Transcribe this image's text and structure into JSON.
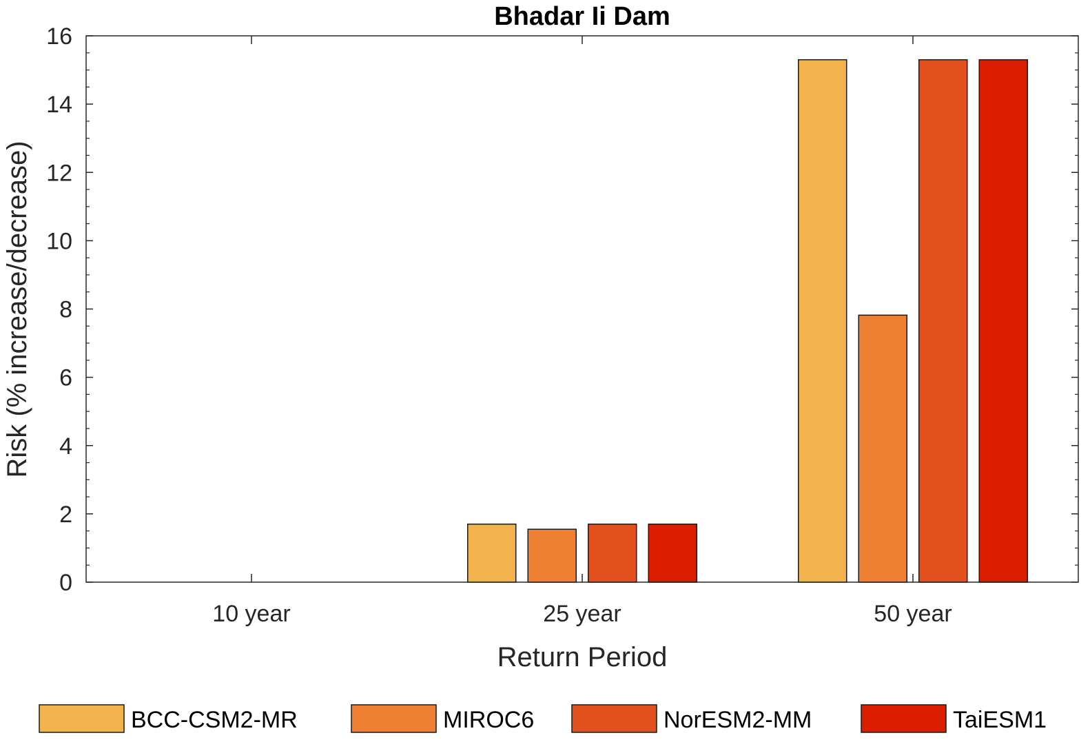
{
  "chart_data": {
    "type": "bar",
    "title": "Bhadar Ii Dam",
    "xlabel": "Return Period",
    "ylabel": "Risk (% increase/decrease)",
    "categories": [
      "10 year",
      "25 year",
      "50 year"
    ],
    "ylim": [
      0,
      16
    ],
    "yticks": [
      0,
      2,
      4,
      6,
      8,
      10,
      12,
      14,
      16
    ],
    "grid": false,
    "legend_position": "bottom",
    "series": [
      {
        "name": "BCC-CSM2-MR",
        "color": "#F2B24C",
        "values": [
          0,
          1.7,
          15.3
        ]
      },
      {
        "name": "MIROC6",
        "color": "#EE7F33",
        "values": [
          0,
          1.55,
          7.82
        ]
      },
      {
        "name": "NorESM2-MM",
        "color": "#E2501E",
        "values": [
          0,
          1.7,
          15.3
        ]
      },
      {
        "name": "TaiESM1",
        "color": "#DC1E00",
        "values": [
          0,
          1.7,
          15.3
        ]
      }
    ]
  }
}
